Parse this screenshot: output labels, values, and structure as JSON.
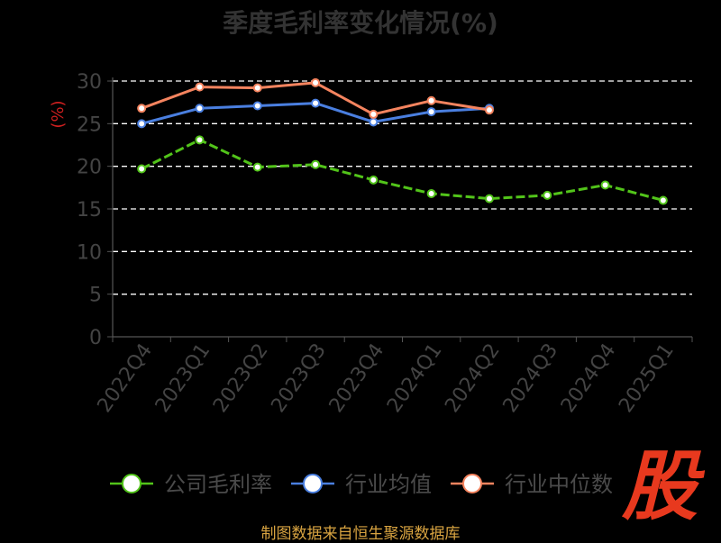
{
  "chart_data": {
    "type": "line",
    "title": "季度毛利率变化情况(%)",
    "ylabel": "(%)",
    "ylim": [
      0,
      30
    ],
    "yticks": [
      0,
      5,
      10,
      15,
      20,
      25,
      30
    ],
    "grid": true,
    "legend_position": "bottom",
    "categories": [
      "2022Q4",
      "2023Q1",
      "2023Q2",
      "2023Q3",
      "2023Q4",
      "2024Q1",
      "2024Q2",
      "2024Q3",
      "2024Q4",
      "2025Q1"
    ],
    "series": [
      {
        "name": "公司毛利率",
        "color": "#52c41a",
        "values": [
          19.7,
          23.1,
          19.9,
          20.2,
          18.4,
          16.8,
          16.2,
          16.6,
          17.8,
          16.0
        ]
      },
      {
        "name": "行业均值",
        "color": "#4a7fe0",
        "values": [
          25.0,
          26.8,
          27.1,
          27.4,
          25.2,
          26.4,
          26.8,
          null,
          null,
          null
        ]
      },
      {
        "name": "行业中位数",
        "color": "#f5845f",
        "values": [
          26.8,
          29.3,
          29.2,
          29.8,
          26.1,
          27.7,
          26.6,
          null,
          null,
          null
        ]
      }
    ]
  },
  "footer": "制图数据来自恒生聚源数据库",
  "logo": "股"
}
